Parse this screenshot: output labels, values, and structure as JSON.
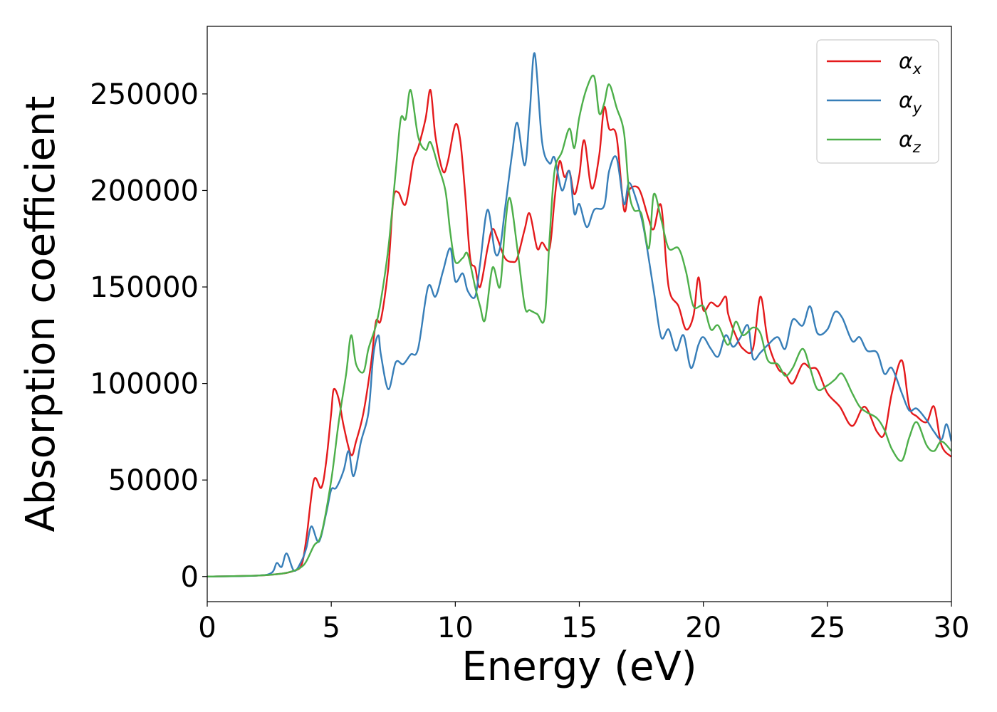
{
  "chart_data": {
    "type": "line",
    "title": "",
    "xlabel": "Energy (eV)",
    "ylabel": "Absorption coefficient",
    "xlim": [
      0,
      30
    ],
    "ylim": [
      -13000,
      285000
    ],
    "xticks": [
      0,
      5,
      10,
      15,
      20,
      25,
      30
    ],
    "yticks": [
      0,
      50000,
      100000,
      150000,
      200000,
      250000
    ],
    "xtick_labels": [
      "0",
      "5",
      "10",
      "15",
      "20",
      "25",
      "30"
    ],
    "ytick_labels": [
      "0",
      "50000",
      "100000",
      "150000",
      "200000",
      "250000"
    ],
    "grid": false,
    "legend_position": "top-right",
    "series": [
      {
        "name": "α_x",
        "label_main": "α",
        "label_sub": "x",
        "color": "#e41a1c",
        "points": [
          [
            0,
            0
          ],
          [
            2,
            500
          ],
          [
            3,
            1500
          ],
          [
            3.5,
            3000
          ],
          [
            3.8,
            6000
          ],
          [
            4.0,
            20000
          ],
          [
            4.3,
            50000
          ],
          [
            4.6,
            46000
          ],
          [
            4.8,
            60000
          ],
          [
            5.0,
            85000
          ],
          [
            5.1,
            97000
          ],
          [
            5.3,
            92000
          ],
          [
            5.5,
            78000
          ],
          [
            5.8,
            63000
          ],
          [
            6.0,
            70000
          ],
          [
            6.3,
            85000
          ],
          [
            6.6,
            110000
          ],
          [
            6.8,
            132000
          ],
          [
            7.0,
            133000
          ],
          [
            7.3,
            160000
          ],
          [
            7.5,
            195000
          ],
          [
            7.7,
            199000
          ],
          [
            8.0,
            193000
          ],
          [
            8.3,
            215000
          ],
          [
            8.5,
            222000
          ],
          [
            8.8,
            237000
          ],
          [
            9.0,
            252000
          ],
          [
            9.2,
            228000
          ],
          [
            9.5,
            210000
          ],
          [
            9.7,
            215000
          ],
          [
            10.0,
            234000
          ],
          [
            10.2,
            226000
          ],
          [
            10.4,
            198000
          ],
          [
            10.6,
            165000
          ],
          [
            10.8,
            160000
          ],
          [
            11.0,
            150000
          ],
          [
            11.3,
            170000
          ],
          [
            11.5,
            180000
          ],
          [
            11.7,
            175000
          ],
          [
            12.0,
            165000
          ],
          [
            12.3,
            163000
          ],
          [
            12.5,
            165000
          ],
          [
            12.8,
            180000
          ],
          [
            13.0,
            188000
          ],
          [
            13.3,
            170000
          ],
          [
            13.5,
            173000
          ],
          [
            13.8,
            170000
          ],
          [
            14.0,
            195000
          ],
          [
            14.2,
            215000
          ],
          [
            14.4,
            207000
          ],
          [
            14.6,
            210000
          ],
          [
            14.8,
            198000
          ],
          [
            15.0,
            208000
          ],
          [
            15.2,
            226000
          ],
          [
            15.5,
            201000
          ],
          [
            15.8,
            218000
          ],
          [
            16.0,
            243000
          ],
          [
            16.2,
            232000
          ],
          [
            16.5,
            228000
          ],
          [
            16.8,
            190000
          ],
          [
            17.0,
            200000
          ],
          [
            17.3,
            202000
          ],
          [
            17.5,
            198000
          ],
          [
            17.8,
            185000
          ],
          [
            18.0,
            180000
          ],
          [
            18.3,
            192000
          ],
          [
            18.6,
            150000
          ],
          [
            19.0,
            140000
          ],
          [
            19.3,
            128000
          ],
          [
            19.6,
            135000
          ],
          [
            19.8,
            155000
          ],
          [
            20.0,
            138000
          ],
          [
            20.3,
            142000
          ],
          [
            20.6,
            140000
          ],
          [
            20.9,
            145000
          ],
          [
            21.0,
            136000
          ],
          [
            21.3,
            125000
          ],
          [
            21.6,
            118000
          ],
          [
            22.0,
            118000
          ],
          [
            22.3,
            145000
          ],
          [
            22.6,
            122000
          ],
          [
            23.0,
            108000
          ],
          [
            23.3,
            105000
          ],
          [
            23.6,
            100000
          ],
          [
            24.0,
            110000
          ],
          [
            24.3,
            108000
          ],
          [
            24.6,
            107000
          ],
          [
            25.0,
            95000
          ],
          [
            25.5,
            88000
          ],
          [
            26.0,
            78000
          ],
          [
            26.5,
            88000
          ],
          [
            27.0,
            75000
          ],
          [
            27.3,
            74000
          ],
          [
            27.6,
            95000
          ],
          [
            28.0,
            112000
          ],
          [
            28.3,
            88000
          ],
          [
            28.6,
            83000
          ],
          [
            29.0,
            80000
          ],
          [
            29.3,
            88000
          ],
          [
            29.6,
            68000
          ],
          [
            30.0,
            62000
          ]
        ]
      },
      {
        "name": "α_y",
        "label_main": "α",
        "label_sub": "y",
        "color": "#377eb8",
        "points": [
          [
            0,
            0
          ],
          [
            2,
            500
          ],
          [
            2.6,
            2000
          ],
          [
            2.8,
            7000
          ],
          [
            3.0,
            5000
          ],
          [
            3.2,
            12000
          ],
          [
            3.5,
            3000
          ],
          [
            3.8,
            8000
          ],
          [
            4.0,
            15000
          ],
          [
            4.2,
            26000
          ],
          [
            4.5,
            18000
          ],
          [
            4.8,
            33000
          ],
          [
            5.0,
            45000
          ],
          [
            5.2,
            46000
          ],
          [
            5.5,
            55000
          ],
          [
            5.7,
            65000
          ],
          [
            5.9,
            52000
          ],
          [
            6.2,
            70000
          ],
          [
            6.5,
            85000
          ],
          [
            6.7,
            115000
          ],
          [
            6.9,
            125000
          ],
          [
            7.0,
            115000
          ],
          [
            7.3,
            97000
          ],
          [
            7.6,
            111000
          ],
          [
            7.9,
            110000
          ],
          [
            8.2,
            115000
          ],
          [
            8.5,
            118000
          ],
          [
            8.9,
            150000
          ],
          [
            9.2,
            145000
          ],
          [
            9.5,
            158000
          ],
          [
            9.8,
            170000
          ],
          [
            10.0,
            153000
          ],
          [
            10.3,
            157000
          ],
          [
            10.5,
            148000
          ],
          [
            10.8,
            145000
          ],
          [
            11.0,
            162000
          ],
          [
            11.3,
            190000
          ],
          [
            11.6,
            168000
          ],
          [
            11.8,
            170000
          ],
          [
            12.0,
            190000
          ],
          [
            12.3,
            220000
          ],
          [
            12.5,
            235000
          ],
          [
            12.8,
            213000
          ],
          [
            13.0,
            240000
          ],
          [
            13.2,
            271000
          ],
          [
            13.5,
            225000
          ],
          [
            13.8,
            214000
          ],
          [
            14.0,
            217000
          ],
          [
            14.3,
            200000
          ],
          [
            14.6,
            210000
          ],
          [
            14.8,
            188000
          ],
          [
            15.0,
            193000
          ],
          [
            15.3,
            181000
          ],
          [
            15.6,
            190000
          ],
          [
            16.0,
            192000
          ],
          [
            16.2,
            210000
          ],
          [
            16.5,
            217000
          ],
          [
            16.8,
            193000
          ],
          [
            17.0,
            204000
          ],
          [
            17.3,
            195000
          ],
          [
            17.6,
            180000
          ],
          [
            18.0,
            148000
          ],
          [
            18.3,
            124000
          ],
          [
            18.6,
            128000
          ],
          [
            18.9,
            117000
          ],
          [
            19.2,
            125000
          ],
          [
            19.5,
            108000
          ],
          [
            19.8,
            120000
          ],
          [
            20.0,
            124000
          ],
          [
            20.3,
            118000
          ],
          [
            20.6,
            114000
          ],
          [
            20.9,
            125000
          ],
          [
            21.2,
            119000
          ],
          [
            21.5,
            124000
          ],
          [
            21.8,
            130000
          ],
          [
            22.0,
            113000
          ],
          [
            22.3,
            116000
          ],
          [
            22.6,
            120000
          ],
          [
            23.0,
            124000
          ],
          [
            23.3,
            118000
          ],
          [
            23.6,
            133000
          ],
          [
            24.0,
            130000
          ],
          [
            24.3,
            140000
          ],
          [
            24.6,
            126000
          ],
          [
            25.0,
            128000
          ],
          [
            25.3,
            137000
          ],
          [
            25.6,
            134000
          ],
          [
            26.0,
            122000
          ],
          [
            26.3,
            124000
          ],
          [
            26.6,
            117000
          ],
          [
            27.0,
            116000
          ],
          [
            27.3,
            105000
          ],
          [
            27.6,
            108000
          ],
          [
            28.0,
            95000
          ],
          [
            28.3,
            86000
          ],
          [
            28.6,
            87000
          ],
          [
            29.0,
            81000
          ],
          [
            29.3,
            75000
          ],
          [
            29.6,
            71000
          ],
          [
            29.8,
            79000
          ],
          [
            30.0,
            70000
          ]
        ]
      },
      {
        "name": "α_z",
        "label_main": "α",
        "label_sub": "z",
        "color": "#4daf4a",
        "points": [
          [
            0,
            0
          ],
          [
            2,
            500
          ],
          [
            3,
            1500
          ],
          [
            3.5,
            3000
          ],
          [
            3.8,
            5000
          ],
          [
            4.0,
            8000
          ],
          [
            4.3,
            16000
          ],
          [
            4.6,
            22000
          ],
          [
            5.0,
            50000
          ],
          [
            5.3,
            80000
          ],
          [
            5.6,
            105000
          ],
          [
            5.8,
            125000
          ],
          [
            6.0,
            110000
          ],
          [
            6.3,
            106000
          ],
          [
            6.5,
            118000
          ],
          [
            6.8,
            130000
          ],
          [
            7.0,
            143000
          ],
          [
            7.3,
            170000
          ],
          [
            7.6,
            210000
          ],
          [
            7.8,
            237000
          ],
          [
            8.0,
            237000
          ],
          [
            8.2,
            252000
          ],
          [
            8.5,
            228000
          ],
          [
            8.8,
            221000
          ],
          [
            9.0,
            225000
          ],
          [
            9.3,
            213000
          ],
          [
            9.6,
            200000
          ],
          [
            9.8,
            178000
          ],
          [
            10.0,
            163000
          ],
          [
            10.3,
            165000
          ],
          [
            10.5,
            167000
          ],
          [
            10.8,
            150000
          ],
          [
            11.0,
            140000
          ],
          [
            11.2,
            133000
          ],
          [
            11.5,
            160000
          ],
          [
            11.8,
            150000
          ],
          [
            12.0,
            180000
          ],
          [
            12.2,
            196000
          ],
          [
            12.5,
            170000
          ],
          [
            12.8,
            140000
          ],
          [
            13.0,
            138000
          ],
          [
            13.3,
            136000
          ],
          [
            13.6,
            134000
          ],
          [
            13.8,
            175000
          ],
          [
            14.0,
            210000
          ],
          [
            14.3,
            220000
          ],
          [
            14.6,
            232000
          ],
          [
            14.8,
            222000
          ],
          [
            15.0,
            238000
          ],
          [
            15.3,
            253000
          ],
          [
            15.6,
            259000
          ],
          [
            15.8,
            240000
          ],
          [
            16.0,
            245000
          ],
          [
            16.2,
            255000
          ],
          [
            16.5,
            243000
          ],
          [
            16.8,
            230000
          ],
          [
            17.0,
            200000
          ],
          [
            17.2,
            190000
          ],
          [
            17.5,
            188000
          ],
          [
            17.8,
            170000
          ],
          [
            18.0,
            198000
          ],
          [
            18.3,
            185000
          ],
          [
            18.6,
            170000
          ],
          [
            19.0,
            170000
          ],
          [
            19.3,
            158000
          ],
          [
            19.6,
            140000
          ],
          [
            20.0,
            140000
          ],
          [
            20.3,
            128000
          ],
          [
            20.6,
            130000
          ],
          [
            21.0,
            120000
          ],
          [
            21.3,
            132000
          ],
          [
            21.6,
            125000
          ],
          [
            22.0,
            129000
          ],
          [
            22.3,
            126000
          ],
          [
            22.6,
            112000
          ],
          [
            23.0,
            110000
          ],
          [
            23.3,
            104000
          ],
          [
            23.6,
            108000
          ],
          [
            24.0,
            118000
          ],
          [
            24.3,
            108000
          ],
          [
            24.6,
            97000
          ],
          [
            25.0,
            99000
          ],
          [
            25.3,
            102000
          ],
          [
            25.6,
            105000
          ],
          [
            26.0,
            95000
          ],
          [
            26.3,
            88000
          ],
          [
            26.6,
            85000
          ],
          [
            27.0,
            82000
          ],
          [
            27.3,
            76000
          ],
          [
            27.6,
            66000
          ],
          [
            28.0,
            60000
          ],
          [
            28.3,
            72000
          ],
          [
            28.6,
            80000
          ],
          [
            29.0,
            68000
          ],
          [
            29.3,
            65000
          ],
          [
            29.6,
            70000
          ],
          [
            30.0,
            65000
          ]
        ]
      }
    ]
  }
}
